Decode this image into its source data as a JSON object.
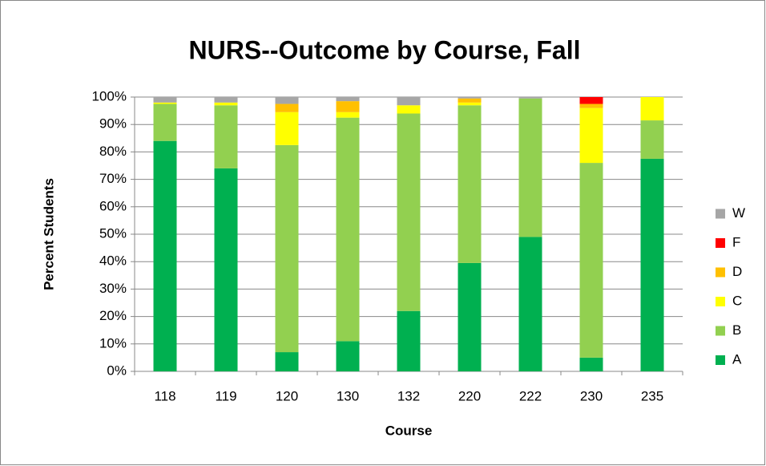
{
  "chart_data": {
    "type": "stacked_bar",
    "title": "NURS--Outcome by Course, Fall",
    "x_label": "Course",
    "y_label": "Percent Students",
    "categories": [
      "118",
      "119",
      "120",
      "130",
      "132",
      "220",
      "222",
      "230",
      "235"
    ],
    "series": [
      {
        "name": "A",
        "color": "#00b050",
        "values": [
          84,
          74,
          7,
          11,
          22,
          39.5,
          49,
          5,
          77.5
        ]
      },
      {
        "name": "B",
        "color": "#92d050",
        "values": [
          13.5,
          23,
          75.5,
          81.5,
          72,
          57.5,
          50.5,
          71,
          14
        ]
      },
      {
        "name": "C",
        "color": "#ffff00",
        "values": [
          0.5,
          1,
          12,
          2,
          3,
          1,
          0,
          20,
          8.5
        ]
      },
      {
        "name": "D",
        "color": "#ffc000",
        "values": [
          0,
          0,
          3,
          4,
          0,
          1.5,
          0,
          1.5,
          0
        ]
      },
      {
        "name": "F",
        "color": "#ff0000",
        "values": [
          0,
          0,
          0,
          0,
          0,
          0,
          0,
          2.5,
          0
        ]
      },
      {
        "name": "W",
        "color": "#a6a6a6",
        "values": [
          2,
          2,
          2.5,
          1.5,
          3,
          0.5,
          0.5,
          0,
          0
        ]
      }
    ],
    "ylim": [
      0,
      100
    ],
    "yticks": [
      {
        "value": 0,
        "label": "0%"
      },
      {
        "value": 10,
        "label": "10%"
      },
      {
        "value": 20,
        "label": "20%"
      },
      {
        "value": 30,
        "label": "30%"
      },
      {
        "value": 40,
        "label": "40%"
      },
      {
        "value": 50,
        "label": "50%"
      },
      {
        "value": 60,
        "label": "60%"
      },
      {
        "value": 70,
        "label": "70%"
      },
      {
        "value": 80,
        "label": "80%"
      },
      {
        "value": 90,
        "label": "90%"
      },
      {
        "value": 100,
        "label": "100%"
      }
    ],
    "grid": true,
    "legend": "right"
  }
}
